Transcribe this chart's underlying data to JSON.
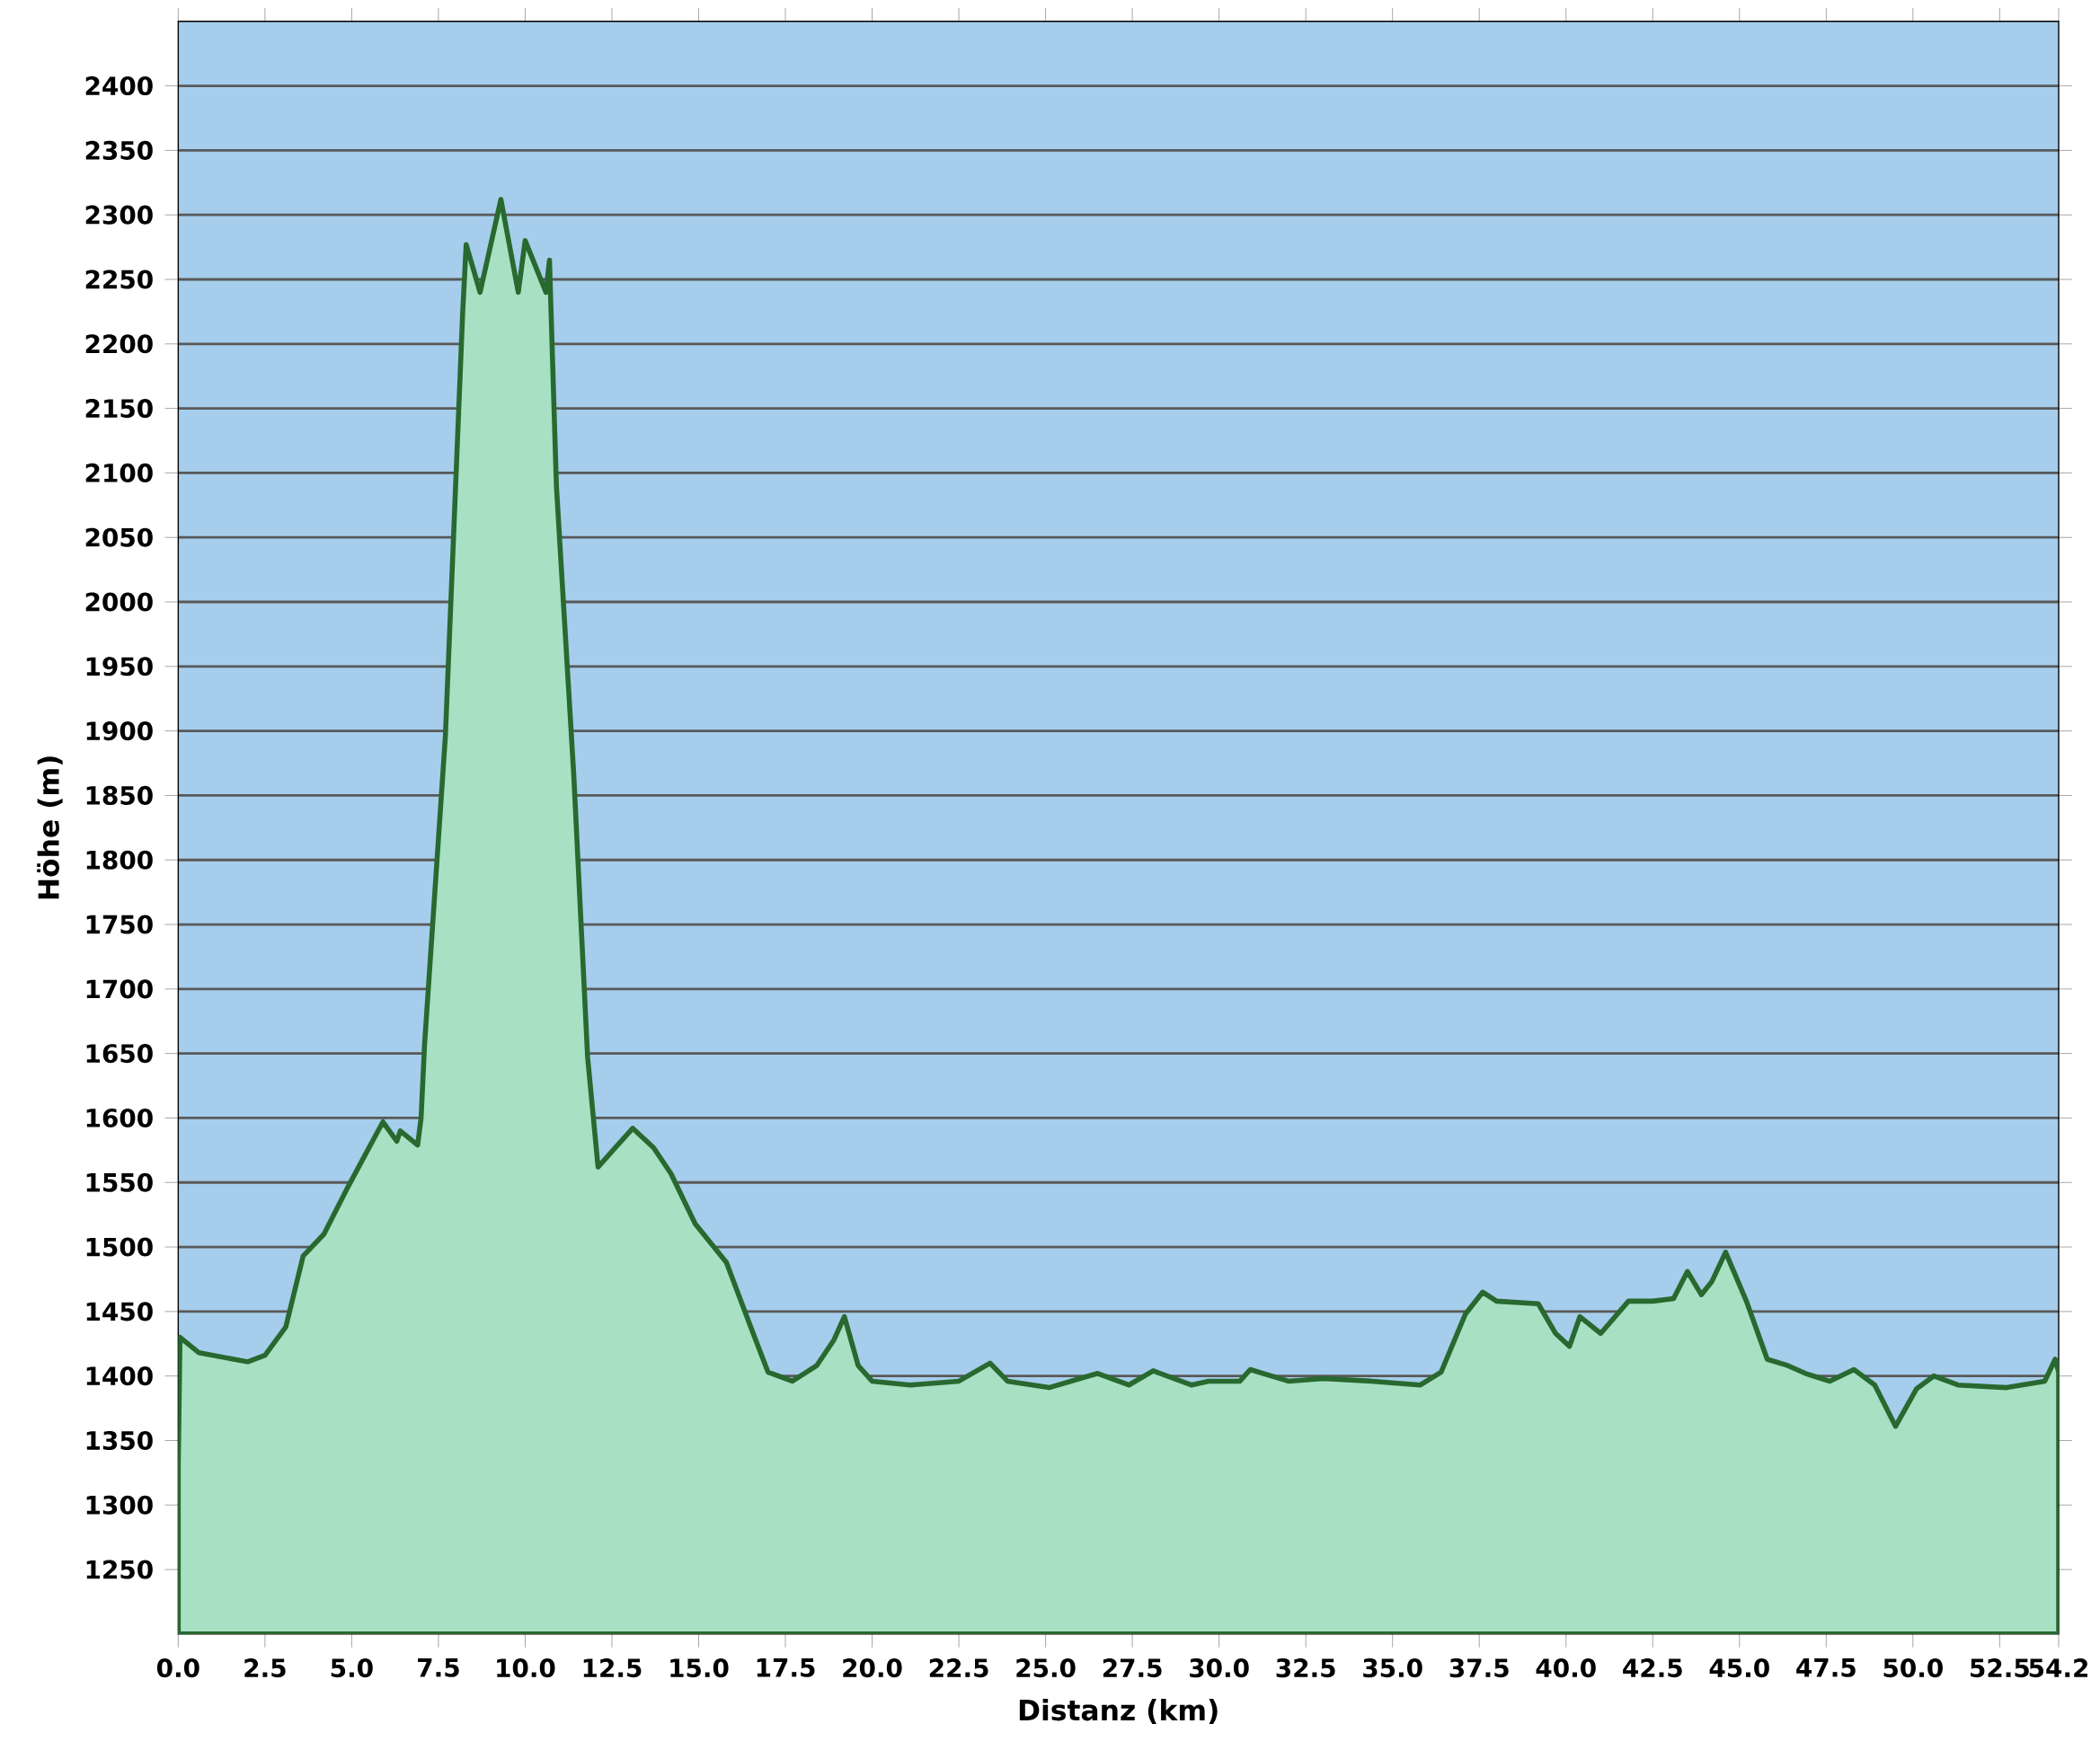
{
  "chart_data": {
    "type": "area",
    "xlabel": "Distanz  (km)",
    "ylabel": "Höhe (m)",
    "x": [
      0,
      0.05,
      0.6,
      2.0,
      2.5,
      3.1,
      3.6,
      4.2,
      4.9,
      5.4,
      5.9,
      6.3,
      6.4,
      6.9,
      7.0,
      7.1,
      7.7,
      8.2,
      8.3,
      8.7,
      9.3,
      9.8,
      10.0,
      10.6,
      10.7,
      10.9,
      11.4,
      11.8,
      12.1,
      12.6,
      13.1,
      13.7,
      14.2,
      14.9,
      15.8,
      16.5,
      17.0,
      17.7,
      18.4,
      18.9,
      19.2,
      19.6,
      20.0,
      21.1,
      22.5,
      23.4,
      23.9,
      25.1,
      26.5,
      27.4,
      28.1,
      29.2,
      29.7,
      30.6,
      30.9,
      32.0,
      33.0,
      34.4,
      35.8,
      36.4,
      37.1,
      37.6,
      38.0,
      39.2,
      39.7,
      40.1,
      40.4,
      41.0,
      41.8,
      42.5,
      43.1,
      43.5,
      43.9,
      44.2,
      44.6,
      45.2,
      45.8,
      46.4,
      46.9,
      47.6,
      48.3,
      48.9,
      49.5,
      50.1,
      50.6,
      51.3,
      52.7,
      53.8,
      54.1,
      54.2
    ],
    "series": [
      {
        "color": "#a8e0c4",
        "values": [
          1330,
          1430,
          1418,
          1411,
          1416,
          1438,
          1493,
          1510,
          1547,
          1572,
          1597,
          1582,
          1590,
          1579,
          1600,
          1657,
          1896,
          2225,
          2277,
          2240,
          2312,
          2240,
          2280,
          2240,
          2265,
          2090,
          1866,
          1647,
          1562,
          1577,
          1592,
          1577,
          1557,
          1518,
          1488,
          1438,
          1403,
          1396,
          1408,
          1428,
          1446,
          1408,
          1396,
          1393,
          1396,
          1410,
          1396,
          1391,
          1402,
          1393,
          1404,
          1393,
          1396,
          1396,
          1405,
          1396,
          1398,
          1396,
          1393,
          1403,
          1448,
          1465,
          1458,
          1456,
          1433,
          1423,
          1446,
          1433,
          1458,
          1458,
          1460,
          1481,
          1463,
          1473,
          1496,
          1458,
          1413,
          1408,
          1402,
          1396,
          1405,
          1393,
          1361,
          1390,
          1400,
          1393,
          1391,
          1396,
          1413,
          1403
        ]
      }
    ],
    "xlim": [
      0,
      54.2
    ],
    "ylim": [
      1200,
      2450
    ],
    "xticks": [
      {
        "value": 0,
        "label": "0.0"
      },
      2.5,
      {
        "value": 5,
        "label": "5.0"
      },
      7.5,
      {
        "value": 10,
        "label": "10.0"
      },
      12.5,
      {
        "value": 15,
        "label": "15.0"
      },
      17.5,
      {
        "value": 20,
        "label": "20.0"
      },
      22.5,
      {
        "value": 25,
        "label": "25.0"
      },
      27.5,
      {
        "value": 30,
        "label": "30.0"
      },
      32.5,
      {
        "value": 35,
        "label": "35.0"
      },
      37.5,
      {
        "value": 40,
        "label": "40.0"
      },
      42.5,
      {
        "value": 45,
        "label": "45.0"
      },
      47.5,
      {
        "value": 50,
        "label": "50.0"
      },
      52.5,
      54.2
    ],
    "yticks": [
      1250,
      1300,
      1350,
      1400,
      1450,
      1500,
      1550,
      1600,
      1650,
      1700,
      1750,
      1800,
      1850,
      1900,
      1950,
      2000,
      2050,
      2100,
      2150,
      2200,
      2250,
      2300,
      2350,
      2400
    ],
    "grid": "y"
  }
}
